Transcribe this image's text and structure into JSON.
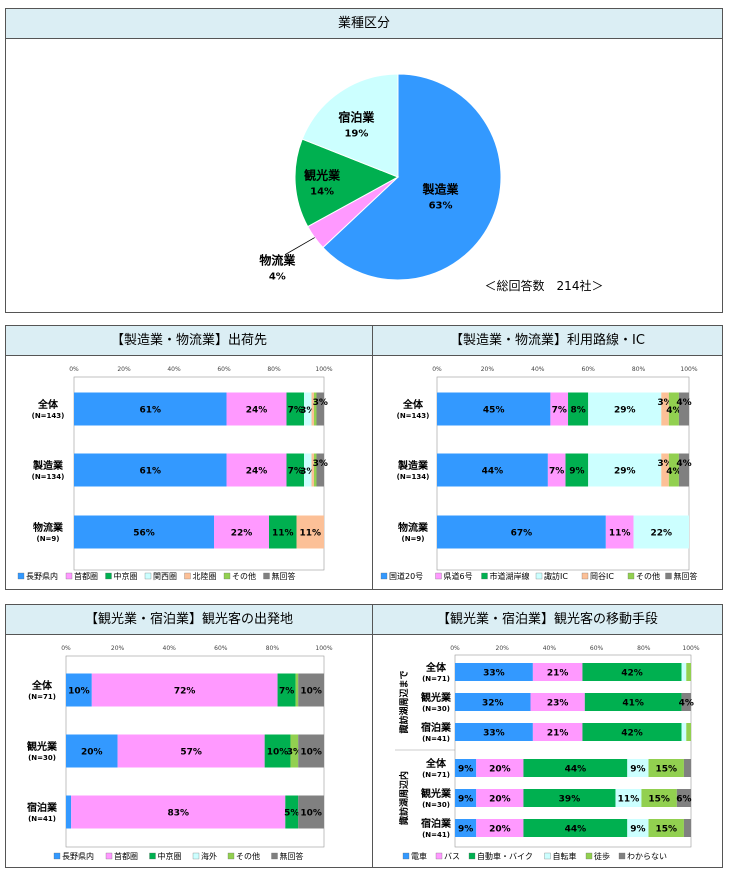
{
  "chart_data": [
    {
      "id": "pie",
      "type": "pie",
      "title": "業種区分",
      "note": "＜総回答数　214社＞",
      "slices": [
        {
          "name": "製造業",
          "value": 63,
          "label": "63%",
          "color": "#3399ff"
        },
        {
          "name": "物流業",
          "value": 4,
          "label": "4%",
          "color": "#ff99ff"
        },
        {
          "name": "観光業",
          "value": 14,
          "label": "14%",
          "color": "#00b050"
        },
        {
          "name": "宿泊業",
          "value": 19,
          "label": "19%",
          "color": "#ccffff"
        }
      ]
    },
    {
      "id": "ship",
      "type": "bar",
      "stacked": true,
      "orientation": "horizontal",
      "title": "【製造業・物流業】出荷先",
      "xlim": [
        0,
        100
      ],
      "ticks": [
        "0%",
        "20%",
        "40%",
        "60%",
        "80%",
        "100%"
      ],
      "categories": [
        {
          "name": "全体",
          "n": "(N=143)"
        },
        {
          "name": "製造業",
          "n": "(N=134)"
        },
        {
          "name": "物流業",
          "n": "(N=9)"
        }
      ],
      "series": [
        {
          "name": "長野県内",
          "color": "#3399ff",
          "values": [
            61,
            61,
            56
          ],
          "labels": [
            "61%",
            "61%",
            "56%"
          ]
        },
        {
          "name": "首都圏",
          "color": "#ff99ff",
          "values": [
            24,
            24,
            22
          ],
          "labels": [
            "24%",
            "24%",
            "22%"
          ]
        },
        {
          "name": "中京圏",
          "color": "#00b050",
          "values": [
            7,
            7,
            11
          ],
          "labels": [
            "7%",
            "7%",
            "11%"
          ]
        },
        {
          "name": "関西圏",
          "color": "#ccffff",
          "values": [
            3,
            3,
            0
          ],
          "labels": [
            "3%",
            "3%",
            ""
          ]
        },
        {
          "name": "北陸圏",
          "color": "#fcc097",
          "values": [
            1,
            1,
            11
          ],
          "labels": [
            "",
            "",
            "11%"
          ]
        },
        {
          "name": "その他",
          "color": "#92d050",
          "values": [
            1,
            1,
            0
          ],
          "labels": [
            "",
            "",
            ""
          ]
        },
        {
          "name": "無回答",
          "color": "#808080",
          "values": [
            3,
            3,
            0
          ],
          "labels": [
            "3%",
            "3%",
            ""
          ]
        }
      ]
    },
    {
      "id": "route",
      "type": "bar",
      "stacked": true,
      "orientation": "horizontal",
      "title": "【製造業・物流業】利用路線・IC",
      "xlim": [
        0,
        100
      ],
      "ticks": [
        "0%",
        "20%",
        "40%",
        "60%",
        "80%",
        "100%"
      ],
      "categories": [
        {
          "name": "全体",
          "n": "(N=143)"
        },
        {
          "name": "製造業",
          "n": "(N=134)"
        },
        {
          "name": "物流業",
          "n": "(N=9)"
        }
      ],
      "series": [
        {
          "name": "国道20号",
          "color": "#3399ff",
          "values": [
            45,
            44,
            67
          ],
          "labels": [
            "45%",
            "44%",
            "67%"
          ]
        },
        {
          "name": "県道6号",
          "color": "#ff99ff",
          "values": [
            7,
            7,
            11
          ],
          "labels": [
            "7%",
            "7%",
            "11%"
          ]
        },
        {
          "name": "市道湖岸線",
          "color": "#00b050",
          "values": [
            8,
            9,
            0
          ],
          "labels": [
            "8%",
            "9%",
            ""
          ]
        },
        {
          "name": "諏訪IC",
          "color": "#ccffff",
          "values": [
            29,
            29,
            22
          ],
          "labels": [
            "29%",
            "29%",
            "22%"
          ]
        },
        {
          "name": "岡谷IC",
          "color": "#fcc097",
          "values": [
            3,
            3,
            0
          ],
          "labels": [
            "3%",
            "3%",
            ""
          ]
        },
        {
          "name": "その他",
          "color": "#92d050",
          "values": [
            4,
            4,
            0
          ],
          "labels": [
            "4%",
            "4%",
            ""
          ]
        },
        {
          "name": "無回答",
          "color": "#808080",
          "values": [
            4,
            4,
            0
          ],
          "labels": [
            "4%",
            "4%",
            ""
          ]
        }
      ]
    },
    {
      "id": "origin",
      "type": "bar",
      "stacked": true,
      "orientation": "horizontal",
      "title": "【観光業・宿泊業】観光客の出発地",
      "xlim": [
        0,
        100
      ],
      "ticks": [
        "0%",
        "20%",
        "40%",
        "60%",
        "80%",
        "100%"
      ],
      "categories": [
        {
          "name": "全体",
          "n": "(N=71)"
        },
        {
          "name": "観光業",
          "n": "(N=30)"
        },
        {
          "name": "宿泊業",
          "n": "(N=41)"
        }
      ],
      "series": [
        {
          "name": "長野県内",
          "color": "#3399ff",
          "values": [
            10,
            20,
            2
          ],
          "labels": [
            "10%",
            "20%",
            ""
          ]
        },
        {
          "name": "首都圏",
          "color": "#ff99ff",
          "values": [
            72,
            57,
            83
          ],
          "labels": [
            "72%",
            "57%",
            "83%"
          ]
        },
        {
          "name": "中京圏",
          "color": "#00b050",
          "values": [
            7,
            10,
            5
          ],
          "labels": [
            "7%",
            "10%",
            "5%"
          ]
        },
        {
          "name": "海外",
          "color": "#ccffff",
          "values": [
            0,
            0,
            0
          ],
          "labels": [
            "",
            "",
            ""
          ]
        },
        {
          "name": "その他",
          "color": "#92d050",
          "values": [
            1,
            3,
            0
          ],
          "labels": [
            "",
            "3%",
            ""
          ]
        },
        {
          "name": "無回答",
          "color": "#808080",
          "values": [
            10,
            10,
            10
          ],
          "labels": [
            "10%",
            "10%",
            "10%"
          ]
        }
      ]
    },
    {
      "id": "move",
      "type": "bar",
      "stacked": true,
      "orientation": "horizontal",
      "title": "【観光業・宿泊業】観光客の移動手段",
      "xlim": [
        0,
        100
      ],
      "ticks": [
        "0%",
        "20%",
        "40%",
        "60%",
        "80%",
        "100%"
      ],
      "groups": [
        "諏訪湖周辺まで",
        "諏訪湖周辺内"
      ],
      "categories": [
        {
          "name": "全体",
          "n": "(N=71)",
          "group": 0
        },
        {
          "name": "観光業",
          "n": "(N=30)",
          "group": 0
        },
        {
          "name": "宿泊業",
          "n": "(N=41)",
          "group": 0
        },
        {
          "name": "全体",
          "n": "(N=71)",
          "group": 1
        },
        {
          "name": "観光業",
          "n": "(N=30)",
          "group": 1
        },
        {
          "name": "宿泊業",
          "n": "(N=41)",
          "group": 1
        }
      ],
      "series": [
        {
          "name": "電車",
          "color": "#3399ff",
          "values": [
            33,
            32,
            33,
            9,
            9,
            9
          ],
          "labels": [
            "33%",
            "32%",
            "33%",
            "9%",
            "9%",
            "9%"
          ]
        },
        {
          "name": "バス",
          "color": "#ff99ff",
          "values": [
            21,
            23,
            21,
            20,
            20,
            20
          ],
          "labels": [
            "21%",
            "23%",
            "21%",
            "20%",
            "20%",
            "20%"
          ]
        },
        {
          "name": "自動車・バイク",
          "color": "#00b050",
          "values": [
            42,
            41,
            42,
            44,
            39,
            44
          ],
          "labels": [
            "42%",
            "41%",
            "42%",
            "44%",
            "39%",
            "44%"
          ]
        },
        {
          "name": "自転車",
          "color": "#ccffff",
          "values": [
            2,
            0,
            2,
            9,
            11,
            9
          ],
          "labels": [
            "",
            "",
            "",
            "9%",
            "11%",
            "9%"
          ]
        },
        {
          "name": "徒歩",
          "color": "#92d050",
          "values": [
            2,
            0,
            2,
            15,
            15,
            15
          ],
          "labels": [
            "",
            "",
            "",
            "15%",
            "15%",
            "15%"
          ]
        },
        {
          "name": "わからない",
          "color": "#808080",
          "values": [
            0,
            4,
            0,
            3,
            6,
            3
          ],
          "labels": [
            "",
            "4%",
            "",
            "",
            "6%",
            ""
          ]
        }
      ]
    }
  ]
}
